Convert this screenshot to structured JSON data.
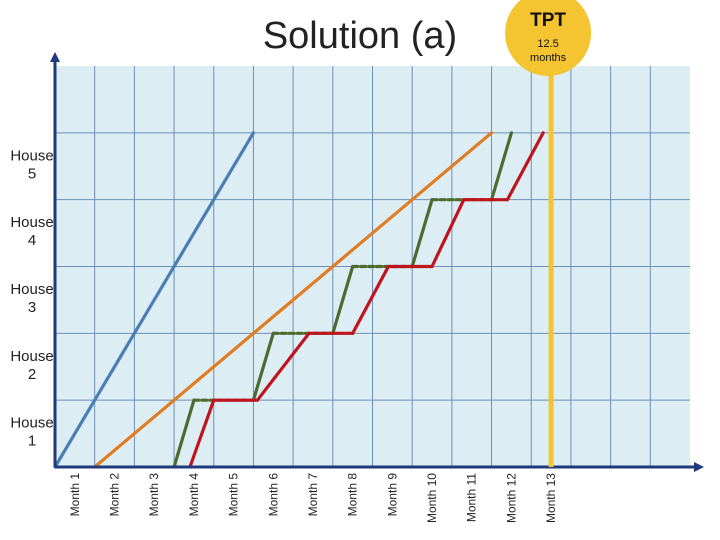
{
  "chart_data": {
    "type": "line",
    "title": "Solution (a)",
    "x_categories": [
      "Month 1",
      "Month 2",
      "Month 3",
      "Month 4",
      "Month 5",
      "Month 6",
      "Month 7",
      "Month 8",
      "Month 9",
      "Month 10",
      "Month 11",
      "Month 12",
      "Month 13"
    ],
    "y_categories": [
      "House 1",
      "House 2",
      "House 3",
      "House 4",
      "House 5"
    ],
    "xlim": [
      0,
      16
    ],
    "ylim": [
      0,
      6
    ],
    "grid": true,
    "background_color": "#dcedf4",
    "grid_color": "#6f8fb8",
    "axis_color": "#1f3a7a",
    "series": [
      {
        "color": "#4a7fb5",
        "points": [
          [
            0,
            0
          ],
          [
            5,
            5
          ]
        ]
      },
      {
        "color": "#e07c22",
        "points": [
          [
            1,
            0
          ],
          [
            11,
            5
          ]
        ]
      },
      {
        "color": "#4d6b2e",
        "points": [
          [
            3,
            0
          ],
          [
            3.5,
            1
          ],
          [
            5,
            1
          ],
          [
            5.5,
            2
          ],
          [
            7,
            2
          ],
          [
            7.5,
            3
          ],
          [
            9,
            3
          ],
          [
            9.5,
            4
          ],
          [
            11,
            4
          ],
          [
            11.5,
            5
          ]
        ],
        "dashed_segments": [
          [
            1,
            2
          ],
          [
            3,
            4
          ],
          [
            5,
            6
          ],
          [
            7,
            8
          ]
        ]
      },
      {
        "color": "#c0141c",
        "points": [
          [
            3.4,
            0
          ],
          [
            4,
            1
          ],
          [
            5.1,
            1
          ],
          [
            6.4,
            2
          ],
          [
            7.5,
            2
          ],
          [
            8.4,
            3
          ],
          [
            9.5,
            3
          ],
          [
            10.3,
            4
          ],
          [
            11.4,
            4
          ],
          [
            12.3,
            5
          ]
        ]
      }
    ],
    "markers": [
      {
        "x": 12.5,
        "color": "#f4c431",
        "badge_title": "TPT",
        "badge_text": "12.5 months"
      }
    ]
  }
}
